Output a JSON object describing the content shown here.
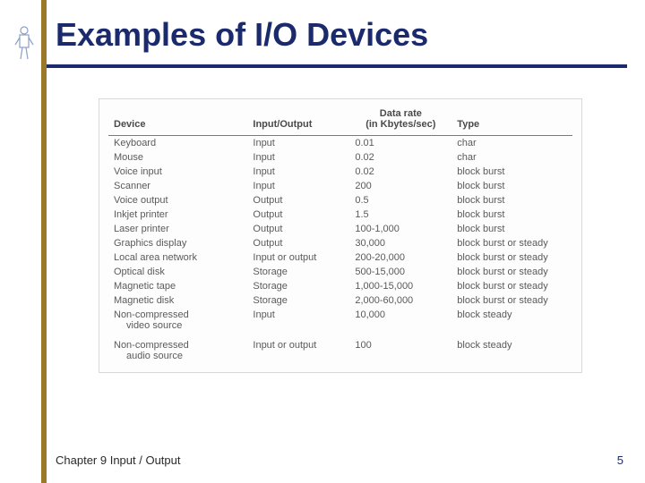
{
  "colors": {
    "title": "#1a2a6c",
    "rule": "#1a2a6c",
    "side_rule": "#9a7a2a",
    "table_border": "#d8d8d8",
    "header_rule": "#7a7a7a",
    "text": "#5a5a5a",
    "page_num": "#1a2a6c",
    "background": "#ffffff"
  },
  "title": "Examples of I/O Devices",
  "footer": {
    "chapter": "Chapter 9 Input / Output",
    "page": "5"
  },
  "table": {
    "headers": {
      "device": "Device",
      "io": "Input/Output",
      "rate_l1": "Data rate",
      "rate_l2": "(in Kbytes/sec)",
      "type": "Type"
    },
    "rows": [
      {
        "device": "Keyboard",
        "io": "Input",
        "rate": "0.01",
        "type": "char"
      },
      {
        "device": "Mouse",
        "io": "Input",
        "rate": "0.02",
        "type": "char"
      },
      {
        "device": "Voice input",
        "io": "Input",
        "rate": "0.02",
        "type": "block burst"
      },
      {
        "device": "Scanner",
        "io": "Input",
        "rate": "200",
        "type": "block burst"
      },
      {
        "device": "Voice output",
        "io": "Output",
        "rate": "0.5",
        "type": "block burst"
      },
      {
        "device": "Inkjet printer",
        "io": "Output",
        "rate": "1.5",
        "type": "block burst"
      },
      {
        "device": "Laser printer",
        "io": "Output",
        "rate": "100-1,000",
        "type": "block burst"
      },
      {
        "device": "Graphics display",
        "io": "Output",
        "rate": "30,000",
        "type": "block burst or steady"
      },
      {
        "device": "Local area network",
        "io": "Input or output",
        "rate": "200-20,000",
        "type": "block burst or steady"
      },
      {
        "device": "Optical disk",
        "io": "Storage",
        "rate": "500-15,000",
        "type": "block burst or steady"
      },
      {
        "device": "Magnetic tape",
        "io": "Storage",
        "rate": "1,000-15,000",
        "type": "block burst or steady"
      },
      {
        "device": "Magnetic disk",
        "io": "Storage",
        "rate": "2,000-60,000",
        "type": "block burst or steady"
      },
      {
        "device": "Non-compressed",
        "device_sub": "video source",
        "io": "Input",
        "rate": "10,000",
        "type": "block steady"
      },
      {
        "device": "Non-compressed",
        "device_sub": "audio source",
        "io": "Input or output",
        "rate": "100",
        "type": "block steady",
        "sep": true
      }
    ]
  }
}
